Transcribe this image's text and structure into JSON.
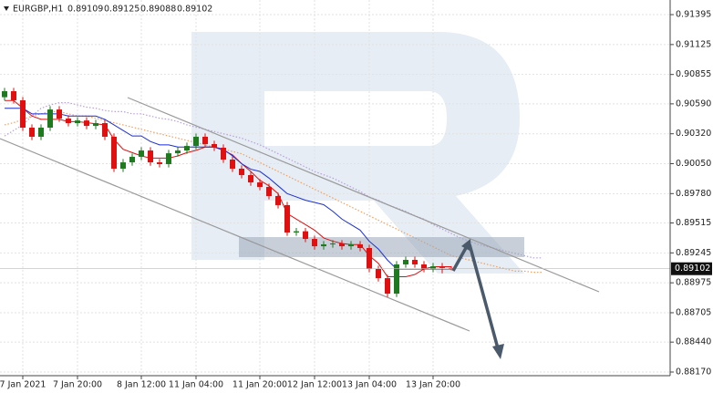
{
  "chart_data": {
    "type": "candlestick",
    "symbol": "EURGBP,H1",
    "categories": [
      null,
      null,
      "7 Jan 2021",
      null,
      null,
      null,
      null,
      null,
      "7 Jan 20:00",
      null,
      null,
      null,
      null,
      null,
      null,
      "8 Jan 12:00",
      null,
      null,
      null,
      null,
      null,
      "11 Jan 04:00",
      null,
      null,
      null,
      null,
      null,
      null,
      "11 Jan 20:00",
      null,
      null,
      null,
      null,
      null,
      "12 Jan 12:00",
      null,
      null,
      null,
      null,
      null,
      "13 Jan 04:00",
      null,
      null,
      null,
      null,
      null,
      null,
      "13 Jan 20:00",
      null,
      null,
      null,
      null,
      null,
      null,
      null,
      null,
      null,
      null,
      null,
      null
    ],
    "open": [
      0.9065,
      0.90704,
      0.90622,
      0.90375,
      0.90293,
      0.90375,
      0.90539,
      0.90457,
      0.90416,
      0.9044,
      0.90391,
      0.90416,
      0.90293,
      0.90005,
      0.90062,
      0.90112,
      0.90169,
      0.90062,
      0.90046,
      0.90144,
      0.90169,
      0.9021,
      0.90293,
      0.90227,
      0.90194,
      0.90087,
      0.90005,
      0.89947,
      0.89881,
      0.8984,
      0.89758,
      0.89676,
      0.89429,
      0.8944,
      0.89371,
      0.89305,
      0.89322,
      0.8933,
      0.89305,
      0.89322,
      0.89289,
      0.891,
      0.89017,
      0.88877,
      0.89141,
      0.89182,
      0.89141,
      0.891,
      0.89124,
      0.89109,
      null,
      null,
      null,
      null,
      null,
      null,
      null,
      null,
      null,
      null
    ],
    "high": [
      0.90734,
      0.90734,
      0.90652,
      0.90405,
      0.90405,
      0.90569,
      0.90569,
      0.90487,
      0.9047,
      0.9047,
      0.90446,
      0.90446,
      0.90323,
      0.90092,
      0.90142,
      0.90199,
      0.90199,
      0.90092,
      0.90174,
      0.90199,
      0.9024,
      0.90323,
      0.90323,
      0.90257,
      0.90224,
      0.90117,
      0.90035,
      0.89977,
      0.89911,
      0.8987,
      0.89788,
      0.89706,
      0.8947,
      0.8947,
      0.89401,
      0.89352,
      0.8936,
      0.8936,
      0.89352,
      0.89352,
      0.89319,
      0.8913,
      0.89047,
      0.89171,
      0.89212,
      0.89212,
      0.89171,
      0.89154,
      0.89154,
      0.89125,
      null,
      null,
      null,
      null,
      null,
      null,
      null,
      null,
      null,
      null
    ],
    "low": [
      0.9062,
      0.90592,
      0.90345,
      0.90263,
      0.90263,
      0.90345,
      0.90427,
      0.90386,
      0.90386,
      0.90361,
      0.90361,
      0.90263,
      0.89975,
      0.89975,
      0.90032,
      0.90082,
      0.90032,
      0.90016,
      0.90016,
      0.90114,
      0.90139,
      0.9018,
      0.90197,
      0.90164,
      0.90057,
      0.89975,
      0.89917,
      0.89851,
      0.8981,
      0.89728,
      0.89646,
      0.89399,
      0.89399,
      0.89341,
      0.89275,
      0.89275,
      0.89292,
      0.89275,
      0.89275,
      0.89259,
      0.8907,
      0.88987,
      0.88847,
      0.88847,
      0.89111,
      0.89111,
      0.8907,
      0.8907,
      0.89061,
      0.89088,
      null,
      null,
      null,
      null,
      null,
      null,
      null,
      null,
      null,
      null
    ],
    "close": [
      0.90704,
      0.90622,
      0.90375,
      0.90293,
      0.90375,
      0.90539,
      0.90457,
      0.90416,
      0.9044,
      0.90391,
      0.90416,
      0.90293,
      0.90005,
      0.90062,
      0.90112,
      0.90169,
      0.90062,
      0.90046,
      0.90144,
      0.90169,
      0.9021,
      0.90293,
      0.90227,
      0.90194,
      0.90087,
      0.90005,
      0.89947,
      0.89881,
      0.8984,
      0.89758,
      0.89676,
      0.89429,
      0.8944,
      0.89371,
      0.89305,
      0.89322,
      0.8933,
      0.89305,
      0.89322,
      0.89289,
      0.891,
      0.89017,
      0.88877,
      0.89141,
      0.89182,
      0.89141,
      0.891,
      0.89124,
      0.89109,
      0.89102,
      null,
      null,
      null,
      null,
      null,
      null,
      null,
      null,
      null,
      null
    ],
    "up_color": "#1f7a1f",
    "down_color": "#e01010",
    "series": [
      {
        "color": "#e01010",
        "style": "solid",
        "values": [
          0.9062,
          0.9062,
          0.9055,
          0.9048,
          0.9045,
          0.9045,
          0.9045,
          0.9043,
          0.9043,
          0.9042,
          0.9041,
          0.904,
          0.9027,
          0.9018,
          0.9015,
          0.9012,
          0.901,
          0.901,
          0.901,
          0.9012,
          0.9015,
          0.9017,
          0.902,
          0.902,
          0.9017,
          0.9013,
          0.9005,
          0.8998,
          0.899,
          0.8985,
          0.8978,
          0.896,
          0.8955,
          0.895,
          0.8945,
          0.8938,
          0.8935,
          0.8933,
          0.8932,
          0.8932,
          0.8922,
          0.8915,
          0.8903,
          0.8903,
          0.8903,
          0.8905,
          0.891,
          0.8912,
          0.8912,
          0.8912,
          null,
          null,
          null,
          null,
          null,
          null,
          null,
          null,
          null,
          null
        ]
      },
      {
        "color": "#1a2fd6",
        "style": "solid",
        "values": [
          0.9055,
          0.9055,
          0.9055,
          0.905,
          0.905,
          0.905,
          0.905,
          0.9048,
          0.9048,
          0.9048,
          0.9048,
          0.9045,
          0.904,
          0.9035,
          0.903,
          0.903,
          0.9025,
          0.9022,
          0.9022,
          0.902,
          0.902,
          0.902,
          0.902,
          0.902,
          0.9018,
          0.9012,
          0.9005,
          0.9,
          0.8998,
          0.8992,
          0.8985,
          0.8978,
          0.8975,
          0.8972,
          0.897,
          0.8968,
          0.8962,
          0.8955,
          0.895,
          0.8945,
          0.8935,
          0.8928,
          0.8918,
          0.891,
          0.891,
          0.891,
          0.891,
          0.891,
          0.891,
          0.891,
          null,
          null,
          null,
          null,
          null,
          null,
          null,
          null,
          null,
          null
        ]
      },
      {
        "color": "#f0a060",
        "style": "dotted",
        "values": [
          0.904,
          0.9042,
          0.9045,
          0.9048,
          0.905,
          0.9052,
          0.9052,
          0.905,
          0.9048,
          0.9048,
          0.9046,
          0.9044,
          0.9042,
          0.904,
          0.9038,
          0.9036,
          0.9034,
          0.9032,
          0.903,
          0.9028,
          0.9026,
          0.9024,
          0.9022,
          0.902,
          0.9018,
          0.9016,
          0.9014,
          0.901,
          0.9006,
          0.9002,
          0.8998,
          0.8994,
          0.899,
          0.8986,
          0.8982,
          0.8978,
          0.8974,
          0.897,
          0.8966,
          0.8962,
          0.8958,
          0.8954,
          0.895,
          0.8946,
          0.8942,
          0.8938,
          0.8934,
          0.893,
          0.8926,
          0.8922,
          0.892,
          0.8918,
          0.8916,
          0.8914,
          0.8912,
          0.891,
          0.8908,
          0.8908,
          0.8907,
          0.8907
        ]
      },
      {
        "color": "#b8a0d8",
        "style": "dotted",
        "values": [
          0.903,
          0.9035,
          0.904,
          0.9048,
          0.9055,
          0.9058,
          0.906,
          0.906,
          0.9058,
          0.9056,
          0.9055,
          0.9053,
          0.9052,
          0.9052,
          0.905,
          0.905,
          0.9048,
          0.9046,
          0.9045,
          0.9043,
          0.904,
          0.9038,
          0.9036,
          0.9034,
          0.9032,
          0.903,
          0.9028,
          0.9025,
          0.9022,
          0.9018,
          0.9014,
          0.901,
          0.9006,
          0.9002,
          0.8998,
          0.8995,
          0.8992,
          0.8988,
          0.8984,
          0.898,
          0.8975,
          0.8972,
          0.8968,
          0.8965,
          0.8962,
          0.8958,
          0.8955,
          0.895,
          0.8946,
          0.8942,
          0.8938,
          0.8935,
          0.8932,
          0.893,
          0.8928,
          0.8926,
          0.8924,
          0.8922,
          0.892,
          0.892
        ]
      }
    ],
    "ylim": [
      0.88137,
      0.91527
    ],
    "yticks": [
      0.91395,
      0.91125,
      0.90855,
      {
        "value": 0.9059,
        "label": "0.90590"
      },
      {
        "value": 0.9032,
        "label": "0.90320"
      },
      {
        "value": 0.9005,
        "label": "0.90050"
      },
      {
        "value": 0.8978,
        "label": "0.89780"
      },
      0.89515,
      0.89245,
      0.88975,
      0.88705,
      {
        "value": 0.8844,
        "label": "0.88440"
      },
      {
        "value": 0.8817,
        "label": "0.88170"
      }
    ],
    "grid": true
  }
}
